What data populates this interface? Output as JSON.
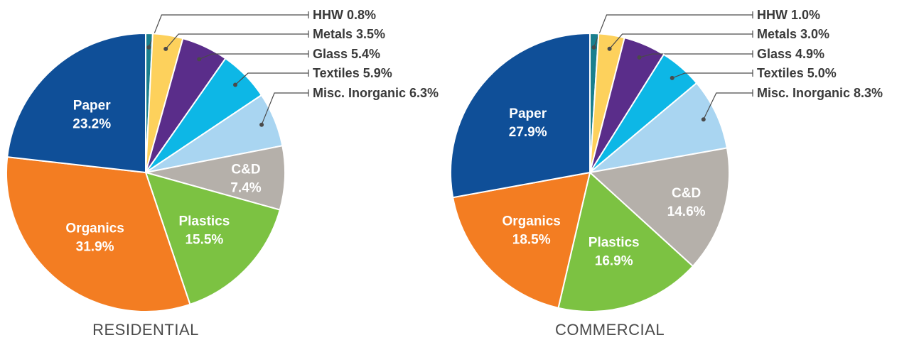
{
  "chart_data": [
    {
      "type": "pie",
      "title": "RESIDENTIAL",
      "slices": [
        {
          "label": "HHW",
          "value": 0.8,
          "display": "0.8%"
        },
        {
          "label": "Metals",
          "value": 3.5,
          "display": "3.5%"
        },
        {
          "label": "Glass",
          "value": 5.4,
          "display": "5.4%"
        },
        {
          "label": "Textiles",
          "value": 5.9,
          "display": "5.9%"
        },
        {
          "label": "Misc. Inorganic",
          "value": 6.3,
          "display": "6.3%"
        },
        {
          "label": "C&D",
          "value": 7.4,
          "display": "7.4%"
        },
        {
          "label": "Plastics",
          "value": 15.5,
          "display": "15.5%"
        },
        {
          "label": "Organics",
          "value": 31.9,
          "display": "31.9%"
        },
        {
          "label": "Paper",
          "value": 23.2,
          "display": "23.2%"
        }
      ]
    },
    {
      "type": "pie",
      "title": "COMMERCIAL",
      "slices": [
        {
          "label": "HHW",
          "value": 1.0,
          "display": "1.0%"
        },
        {
          "label": "Metals",
          "value": 3.0,
          "display": "3.0%"
        },
        {
          "label": "Glass",
          "value": 4.9,
          "display": "4.9%"
        },
        {
          "label": "Textiles",
          "value": 5.0,
          "display": "5.0%"
        },
        {
          "label": "Misc. Inorganic",
          "value": 8.3,
          "display": "8.3%"
        },
        {
          "label": "C&D",
          "value": 14.6,
          "display": "14.6%"
        },
        {
          "label": "Plastics",
          "value": 16.9,
          "display": "16.9%"
        },
        {
          "label": "Organics",
          "value": 18.5,
          "display": "18.5%"
        },
        {
          "label": "Paper",
          "value": 27.9,
          "display": "27.9%"
        }
      ]
    }
  ],
  "colors": {
    "HHW": "#1a7f8e",
    "Metals": "#fdd15c",
    "Glass": "#5a2d8a",
    "Textiles": "#0db7e6",
    "Misc. Inorganic": "#a9d5f1",
    "C&D": "#b5b0aa",
    "Plastics": "#7cc242",
    "Organics": "#f37d22",
    "Paper": "#0f4f98"
  }
}
